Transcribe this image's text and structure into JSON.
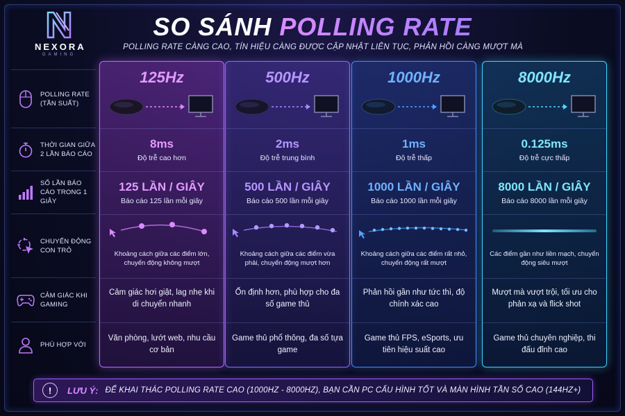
{
  "brand": {
    "name": "NEXORA",
    "sub": "GAMING"
  },
  "title_part1": "SO SÁNH",
  "title_part2": "POLLING RATE",
  "subtitle": "POLLING RATE CÀNG CAO, TÍN HIỆU CÀNG ĐƯỢC CẬP NHẬT LIÊN TỤC, PHẢN HỒI CÀNG MƯỢT MÀ",
  "rows": [
    {
      "label": "POLLING RATE (TẦN SUẤT)",
      "icon": "mouse-icon"
    },
    {
      "label": "THỜI GIAN GIỮA 2 LẦN BÁO CÁO",
      "icon": "stopwatch-icon"
    },
    {
      "label": "SỐ LẦN BÁO CÁO TRONG 1 GIÂY",
      "icon": "bars-icon"
    },
    {
      "label": "CHUYỂN ĐỘNG CON TRỎ",
      "icon": "cursor-target-icon"
    },
    {
      "label": "CẢM GIÁC KHI GAMING",
      "icon": "gamepad-icon"
    },
    {
      "label": "PHÙ HỢP VỚI",
      "icon": "user-icon"
    }
  ],
  "columns": [
    {
      "rate": "125Hz",
      "interval": "8ms",
      "interval_note": "Độ trễ cao hơn",
      "reports": "125 LẦN / GIÂY",
      "reports_note": "Báo cáo 125 lần mỗi giây",
      "motion_note": "Khoảng cách giữa các điểm lớn, chuyển động không mượt",
      "feel": "Cảm giác hơi giật, lag nhẹ khi di chuyển nhanh",
      "suits": "Văn phòng, lướt web, nhu cầu cơ bản",
      "color": "#d98cff"
    },
    {
      "rate": "500Hz",
      "interval": "2ms",
      "interval_note": "Độ trễ trung bình",
      "reports": "500 LẦN / GIÂY",
      "reports_note": "Báo cáo 500 lần mỗi giây",
      "motion_note": "Khoảng cách giữa các điểm vừa phải, chuyển động mượt hơn",
      "feel": "Ổn định hơn, phù hợp cho đa số game thủ",
      "suits": "Game thủ phổ thông, đa số tựa game",
      "color": "#a88bff"
    },
    {
      "rate": "1000Hz",
      "interval": "1ms",
      "interval_note": "Độ trễ thấp",
      "reports": "1000 LẦN / GIÂY",
      "reports_note": "Báo cáo 1000 lần mỗi giây",
      "motion_note": "Khoảng cách giữa các điểm rất nhỏ, chuyển động rất mượt",
      "feel": "Phản hồi gần như tức thì, độ chính xác cao",
      "suits": "Game thủ FPS, eSports, ưu tiên hiệu suất cao",
      "color": "#4fa3ff"
    },
    {
      "rate": "8000Hz",
      "interval": "0.125ms",
      "interval_note": "Độ trễ cực thấp",
      "reports": "8000 LẦN / GIÂY",
      "reports_note": "Báo cáo 8000 lần mỗi giây",
      "motion_note": "Các điểm gần như liền mạch, chuyển động siêu mượt",
      "feel": "Mượt mà vượt trội, tối ưu cho phản xạ và flick shot",
      "suits": "Game thủ chuyên nghiệp, thi đấu đỉnh cao",
      "color": "#52dcff"
    }
  ],
  "footer": {
    "label": "LƯU Ý:",
    "text": "ĐỂ KHAI THÁC POLLING RATE CAO (1000HZ - 8000HZ), BẠN CẦN PC CẤU HÌNH TỐT VÀ MÀN HÌNH TẦN SỐ CAO (144HZ+)"
  }
}
